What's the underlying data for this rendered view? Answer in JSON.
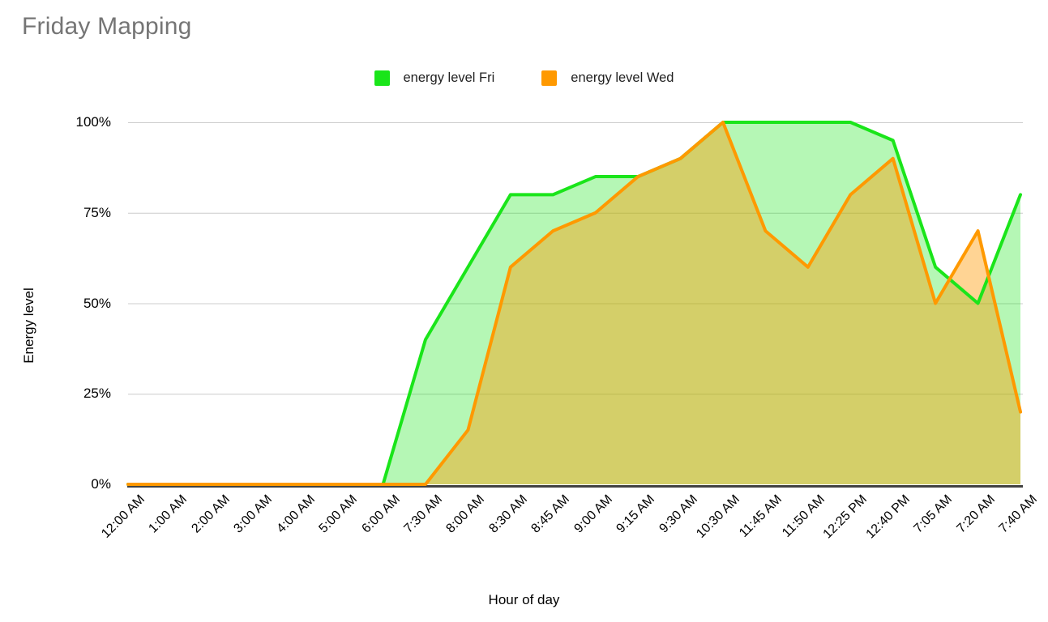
{
  "title": "Friday Mapping",
  "colors": {
    "title_text": "#757575",
    "gridline": "#cccccc",
    "axis_line": "#424242",
    "tick_text": "#000000",
    "fri_green": "#1ae51a",
    "wed_orange": "#ff9900"
  },
  "chart_data": {
    "type": "area",
    "title": "Friday Mapping",
    "xlabel": "Hour of day",
    "ylabel": "Energy level",
    "ylim": [
      0,
      100
    ],
    "y_ticks": [
      "0%",
      "25%",
      "50%",
      "75%",
      "100%"
    ],
    "grid": true,
    "legend_position": "top",
    "x_categories": [
      "12:00 AM",
      "1:00 AM",
      "2:00 AM",
      "3:00 AM",
      "4:00 AM",
      "5:00 AM",
      "6:00 AM",
      "7:30 AM",
      "8:00 AM",
      "8:30 AM",
      "8:45 AM",
      "9:00 AM",
      "9:15 AM",
      "9:30 AM",
      "10:30 AM",
      "11:45 AM",
      "11:50 AM",
      "12:25 PM",
      "12:40 PM",
      "7:05 AM",
      "7:20 AM",
      "7:40 AM"
    ],
    "series": [
      {
        "name": "energy level Fri",
        "color": "#1ae51a",
        "fill_opacity": 0.32,
        "values": [
          0,
          0,
          0,
          0,
          0,
          0,
          0,
          40,
          60,
          80,
          80,
          85,
          85,
          90,
          100,
          100,
          100,
          100,
          95,
          60,
          50,
          80
        ]
      },
      {
        "name": "energy level Wed",
        "color": "#ff9900",
        "fill_opacity": 0.42,
        "values": [
          0,
          0,
          0,
          0,
          0,
          0,
          0,
          0,
          15,
          60,
          70,
          75,
          85,
          90,
          100,
          70,
          60,
          80,
          90,
          50,
          70,
          20
        ]
      }
    ]
  }
}
